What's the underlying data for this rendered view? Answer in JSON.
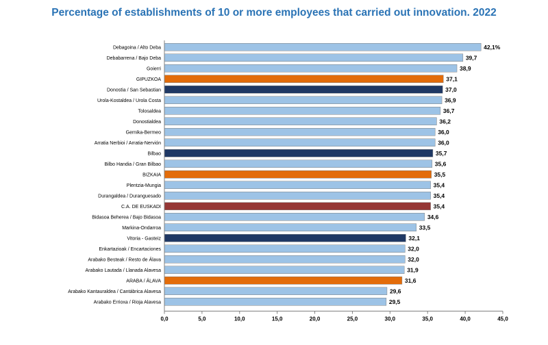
{
  "chart_data": {
    "type": "bar",
    "orientation": "horizontal",
    "title": "Percentage of establishments of 10 or more employees that carried out innovation. 2022",
    "xlabel": "",
    "ylabel": "",
    "xlim": [
      0,
      45
    ],
    "ticks": [
      "0,0",
      "5,0",
      "10,0",
      "15,0",
      "20,0",
      "25,0",
      "30,0",
      "35,0",
      "40,0",
      "45,0"
    ],
    "categories": [
      "Debagoina  /  Alto Deba",
      "Debabarrena  /  Bajo Deba",
      "Goierri",
      "GIPUZKOA",
      "Donostia / San Sebastian",
      "Urola-Kostaldea  /  Urola Costa",
      "Tolosaldea",
      "Donostialdea",
      "Gernika-Bermeo",
      "Arratia Nerbioi  /  Arratia-Nervión",
      "Bilbao",
      "Bilbo Handia  /  Gran Bilbao",
      "BIZKAIA",
      "Plentzia-Mungia",
      "Durangaldea  /  Duranguesado",
      "C.A. DE EUSKADI",
      "Bidasoa Beherea  /  Bajo Bidasoa",
      "Markina-Ondarroa",
      "Vitoria - Gasteiz",
      "Enkartazioak  /  Encartaciones",
      "Arabako Besteak / Resto de Álava",
      "Arabako Lautada  /  Llanada Alavesa",
      "ARABA / ÁLAVA",
      "Arabako Kantauraldea / Cantábrica Alavesa",
      "Arabako Errioxa / Rioja Alavesa"
    ],
    "values": [
      42.1,
      39.7,
      38.9,
      37.1,
      37.0,
      36.9,
      36.7,
      36.2,
      36.0,
      36.0,
      35.7,
      35.6,
      35.5,
      35.4,
      35.4,
      35.4,
      34.6,
      33.5,
      32.1,
      32.0,
      32.0,
      31.9,
      31.6,
      29.6,
      29.5
    ],
    "value_labels": [
      "42,1%",
      "39,7",
      "38,9",
      "37,1",
      "37,0",
      "36,9",
      "36,7",
      "36,2",
      "36,0",
      "36,0",
      "35,7",
      "35,6",
      "35,5",
      "35,4",
      "35,4",
      "35,4",
      "34,6",
      "33,5",
      "32,1",
      "32,0",
      "32,0",
      "31,9",
      "31,6",
      "29,6",
      "29,5"
    ],
    "bar_kinds": [
      "comarca",
      "comarca",
      "comarca",
      "province",
      "capital",
      "comarca",
      "comarca",
      "comarca",
      "comarca",
      "comarca",
      "capital",
      "comarca",
      "province",
      "comarca",
      "comarca",
      "total",
      "comarca",
      "comarca",
      "capital",
      "comarca",
      "comarca",
      "comarca",
      "province",
      "comarca",
      "comarca"
    ],
    "colors": {
      "comarca": "#9dc3e6",
      "province": "#e36c0a",
      "capital": "#1f3864",
      "total": "#953735",
      "bar_outline": "#7f7f7f",
      "axis": "#808080",
      "title": "#2a73b5"
    }
  }
}
